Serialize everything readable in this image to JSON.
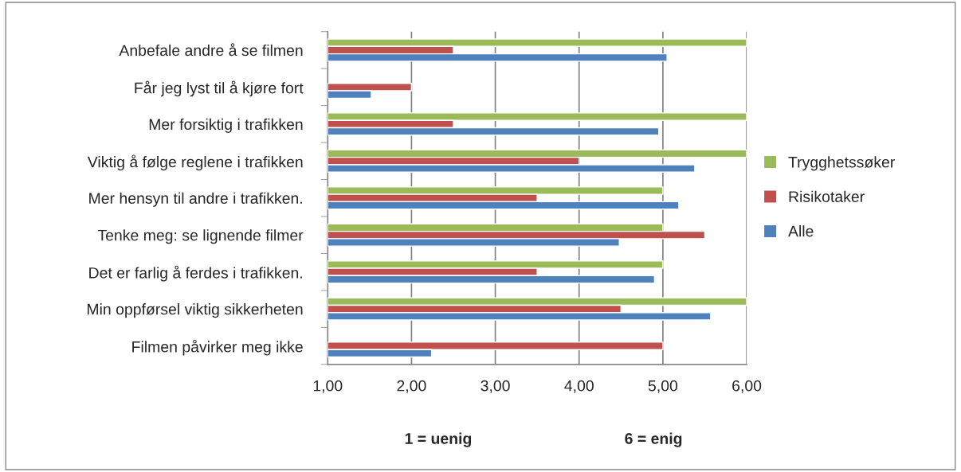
{
  "chart_data": {
    "type": "bar",
    "orientation": "horizontal",
    "categories": [
      "Anbefale andre å se filmen",
      "Får jeg lyst til å kjøre fort",
      "Mer forsiktig i trafikken",
      "Viktig å følge reglene i trafikken",
      "Mer hensyn til andre i trafikken.",
      "Tenke meg: se lignende filmer",
      "Det er farlig å ferdes i trafikken.",
      "Min oppførsel viktig sikkerheten",
      "Filmen påvirker meg ikke"
    ],
    "series": [
      {
        "name": "Trygghetssøker",
        "color": "#9bbb59",
        "values": [
          6,
          null,
          6,
          6,
          5,
          5,
          5,
          6,
          null
        ]
      },
      {
        "name": "Risikotaker",
        "color": "#c0504d",
        "values": [
          2.5,
          2,
          2.5,
          4,
          3.5,
          5.5,
          3.5,
          4.5,
          5
        ]
      },
      {
        "name": "Alle",
        "color": "#4f81bd",
        "values": [
          5.05,
          1.52,
          4.95,
          5.38,
          5.19,
          4.48,
          4.9,
          5.57,
          2.24
        ]
      }
    ],
    "xlim": [
      1,
      6
    ],
    "xticks": [
      {
        "value": 1,
        "label": "1,00"
      },
      {
        "value": 2,
        "label": "2,00"
      },
      {
        "value": 3,
        "label": "3,00"
      },
      {
        "value": 4,
        "label": "4,00"
      },
      {
        "value": 5,
        "label": "5,00"
      },
      {
        "value": 6,
        "label": "6,00"
      }
    ],
    "grid": "x",
    "legend": "right",
    "annotations": [
      "1 = uenig",
      "6 = enig"
    ]
  }
}
